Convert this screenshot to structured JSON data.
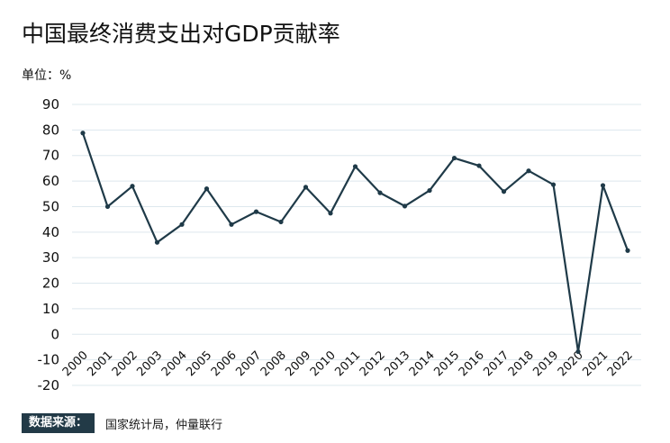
{
  "chart_data": {
    "type": "line",
    "title": "中国最终消费支出对GDP贡献率",
    "unit_label": "单位：%",
    "x": [
      "2000",
      "2001",
      "2002",
      "2003",
      "2004",
      "2005",
      "2006",
      "2007",
      "2008",
      "2009",
      "2010",
      "2011",
      "2012",
      "2013",
      "2014",
      "2015",
      "2016",
      "2017",
      "2018",
      "2019",
      "2020",
      "2021",
      "2022"
    ],
    "series": [
      {
        "values": [
          78.8,
          50.0,
          58.0,
          36.0,
          43.0,
          57.0,
          43.0,
          48.0,
          44.0,
          57.6,
          47.4,
          65.7,
          55.4,
          50.2,
          56.3,
          69.0,
          66.0,
          55.9,
          64.0,
          58.6,
          -6.8,
          58.3,
          32.8
        ]
      }
    ],
    "y_ticks": [
      "90",
      "80",
      "70",
      "60",
      "50",
      "40",
      "30",
      "20",
      "10",
      "0",
      "-10",
      "-20"
    ],
    "ylim": [
      -20,
      90
    ],
    "grid": "horizontal",
    "line_color": "#1f3a48",
    "grid_color": "#dde8ee"
  },
  "footer": {
    "source_label": "数据来源：",
    "source_text": "国家统计局，仲量联行"
  }
}
